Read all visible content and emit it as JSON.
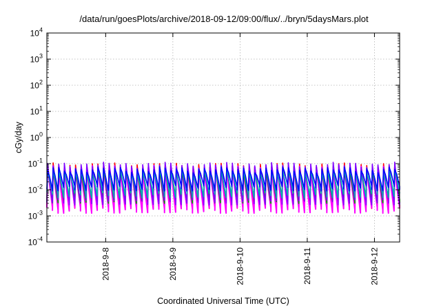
{
  "chart_data": {
    "type": "line",
    "title": "/data/run/goesPlots/archive/2018-09-12/09:00/flux/../bryn/5daysMars.plot",
    "xlabel": "Coordinated Universal Time (UTC)",
    "ylabel": "cGy/day",
    "yscale": "log",
    "ylim": [
      0.0001,
      10000
    ],
    "y_ticks": [
      {
        "base": "10",
        "exp": "-4"
      },
      {
        "base": "10",
        "exp": "-3"
      },
      {
        "base": "10",
        "exp": "-2"
      },
      {
        "base": "10",
        "exp": "-1"
      },
      {
        "base": "10",
        "exp": "0"
      },
      {
        "base": "10",
        "exp": "1"
      },
      {
        "base": "10",
        "exp": "2"
      },
      {
        "base": "10",
        "exp": "3"
      },
      {
        "base": "10",
        "exp": "4"
      }
    ],
    "xlim": [
      "2018-09-07 03:00",
      "2018-09-12 09:00"
    ],
    "x_ticks": [
      {
        "label": "2018-9-8",
        "date": "2018-09-08"
      },
      {
        "label": "2018-9-9",
        "date": "2018-09-09"
      },
      {
        "label": "2018-9-10",
        "date": "2018-09-10"
      },
      {
        "label": "2018-9-11",
        "date": "2018-09-11"
      },
      {
        "label": "2018-9-12",
        "date": "2018-09-12"
      }
    ],
    "grid": true,
    "periodic_pattern": {
      "cycles_per_day": 12,
      "start": "2018-09-07 03:00",
      "end": "2018-09-12 09:00"
    },
    "series": [
      {
        "color": "#ff0000",
        "peak": 0.085,
        "trough": 0.0025
      },
      {
        "color": "#ff00ff",
        "peak": 0.07,
        "trough": 0.0017
      },
      {
        "color": "#00a000",
        "peak": 0.065,
        "trough": 0.004
      },
      {
        "color": "#8000ff",
        "peak": 0.09,
        "trough": 0.0035
      },
      {
        "color": "#00b0b0",
        "peak": 0.05,
        "trough": 0.0065
      },
      {
        "color": "#0000ff",
        "peak": 0.06,
        "trough": 0.012
      }
    ]
  }
}
